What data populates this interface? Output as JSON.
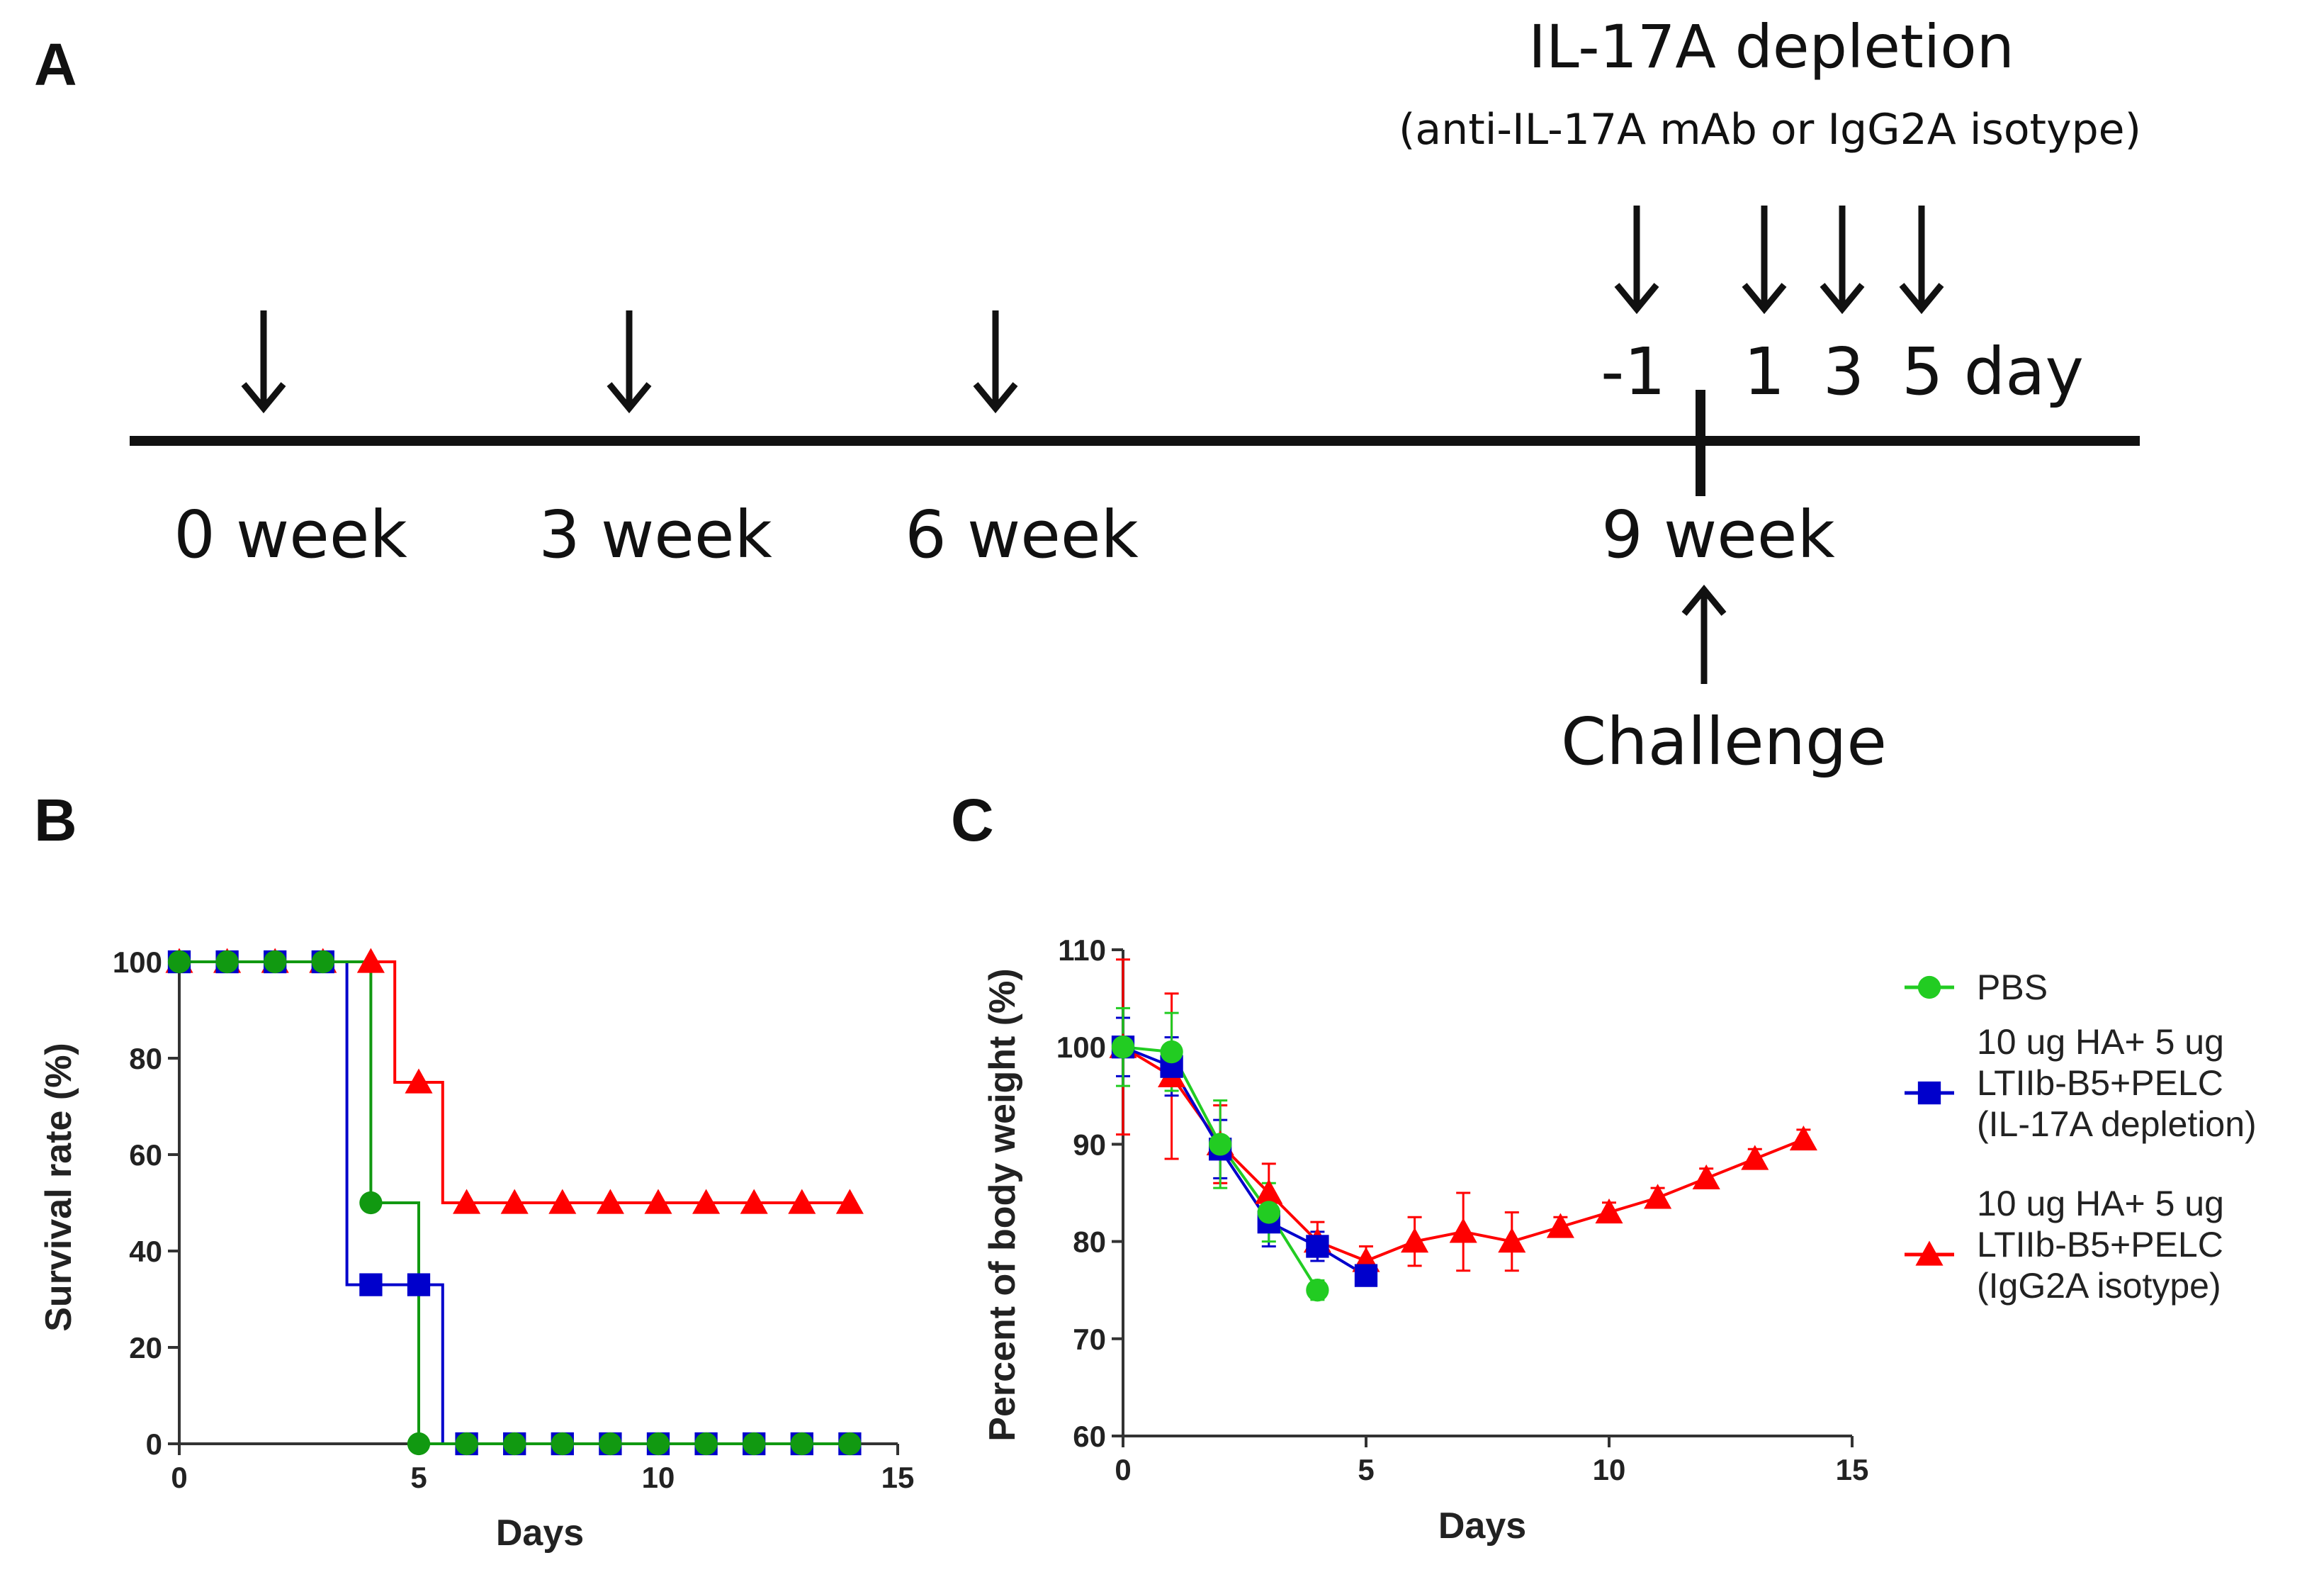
{
  "panel_a": {
    "letter": "A",
    "depletion_title": "IL-17A depletion",
    "depletion_subtitle": "(anti-IL-17A mAb  or IgG2A isotype)",
    "day_labels": [
      "-1",
      "1",
      "3",
      "5 day"
    ],
    "week_labels": [
      "0 week",
      "3 week",
      "6 week",
      "9 week"
    ],
    "challenge_label": "Challenge"
  },
  "chart_data": [
    {
      "panel": "B",
      "type": "line",
      "title": "",
      "xlabel": "Days",
      "ylabel": "Survival rate (%)",
      "xlim": [
        0,
        15
      ],
      "ylim": [
        0,
        100
      ],
      "xticks": [
        0,
        5,
        10,
        15
      ],
      "yticks": [
        0,
        20,
        40,
        60,
        80,
        100
      ],
      "step": true,
      "series": [
        {
          "name": "10 ug HA+ 5 ug LTIIb-B5+PELC (IgG2A isotype)",
          "color": "#ff0000",
          "marker": "triangle",
          "x": [
            0,
            1,
            2,
            3,
            4,
            5,
            6,
            7,
            8,
            9,
            10,
            11,
            12,
            13,
            14
          ],
          "y": [
            100,
            100,
            100,
            100,
            100,
            75,
            50,
            50,
            50,
            50,
            50,
            50,
            50,
            50,
            50
          ]
        },
        {
          "name": "10 ug HA+ 5 ug LTIIb-B5+PELC (IL-17A depletion)",
          "color": "#0000cc",
          "marker": "square",
          "x": [
            0,
            1,
            2,
            3,
            4,
            5,
            6,
            7,
            8,
            9,
            10,
            11,
            12,
            13,
            14
          ],
          "y": [
            100,
            100,
            100,
            100,
            33,
            33,
            0,
            0,
            0,
            0,
            0,
            0,
            0,
            0,
            0
          ]
        },
        {
          "name": "PBS",
          "color": "#119911",
          "marker": "circle",
          "x": [
            0,
            1,
            2,
            3,
            4,
            5,
            6,
            7,
            8,
            9,
            10,
            11,
            12,
            13,
            14
          ],
          "y": [
            100,
            100,
            100,
            100,
            50,
            0,
            0,
            0,
            0,
            0,
            0,
            0,
            0,
            0,
            0
          ]
        }
      ]
    },
    {
      "panel": "C",
      "type": "line",
      "title": "",
      "xlabel": "Days",
      "ylabel": "Percent of body weight (%)",
      "xlim": [
        0,
        15
      ],
      "ylim": [
        60,
        110
      ],
      "xticks": [
        0,
        5,
        10,
        15
      ],
      "yticks": [
        60,
        70,
        80,
        90,
        100,
        110
      ],
      "legend_position": "right",
      "legend": [
        {
          "lines": [
            "PBS"
          ],
          "color": "#22cc22",
          "marker": "circle"
        },
        {
          "lines": [
            "10 ug HA+ 5 ug",
            "LTIIb-B5+PELC",
            " (IL-17A depletion)"
          ],
          "color": "#0000cc",
          "marker": "square"
        },
        {
          "lines": [
            "10 ug HA+ 5 ug",
            "LTIIb-B5+PELC",
            "(IgG2A isotype)"
          ],
          "color": "#ff0000",
          "marker": "triangle"
        }
      ],
      "series": [
        {
          "name": "10 ug HA+ 5 ug LTIIb-B5+PELC (IgG2A isotype)",
          "color": "#ff0000",
          "marker": "triangle",
          "x": [
            0,
            1,
            2,
            3,
            4,
            5,
            6,
            7,
            8,
            9,
            10,
            11,
            12,
            13,
            14
          ],
          "y": [
            100,
            97,
            90,
            85,
            80,
            78,
            80,
            81,
            80,
            81.5,
            83,
            84.5,
            86.5,
            88.5,
            90.5
          ],
          "err": [
            9,
            8.5,
            4,
            3,
            2,
            1.5,
            2.5,
            4,
            3,
            1,
            1,
            1,
            1,
            1,
            1
          ]
        },
        {
          "name": "10 ug HA+ 5 ug LTIIb-B5+PELC (IL-17A depletion)",
          "color": "#0000cc",
          "marker": "square",
          "x": [
            0,
            1,
            2,
            3,
            4,
            5
          ],
          "y": [
            100,
            98,
            89.5,
            82,
            79.5,
            76.5
          ],
          "err": [
            3,
            3,
            3,
            2.5,
            1.5,
            1
          ]
        },
        {
          "name": "PBS",
          "color": "#22cc22",
          "marker": "circle",
          "x": [
            0,
            1,
            2,
            3,
            4
          ],
          "y": [
            100,
            99.5,
            90,
            83,
            75
          ],
          "err": [
            4,
            4,
            4.5,
            3,
            1
          ]
        }
      ]
    }
  ]
}
